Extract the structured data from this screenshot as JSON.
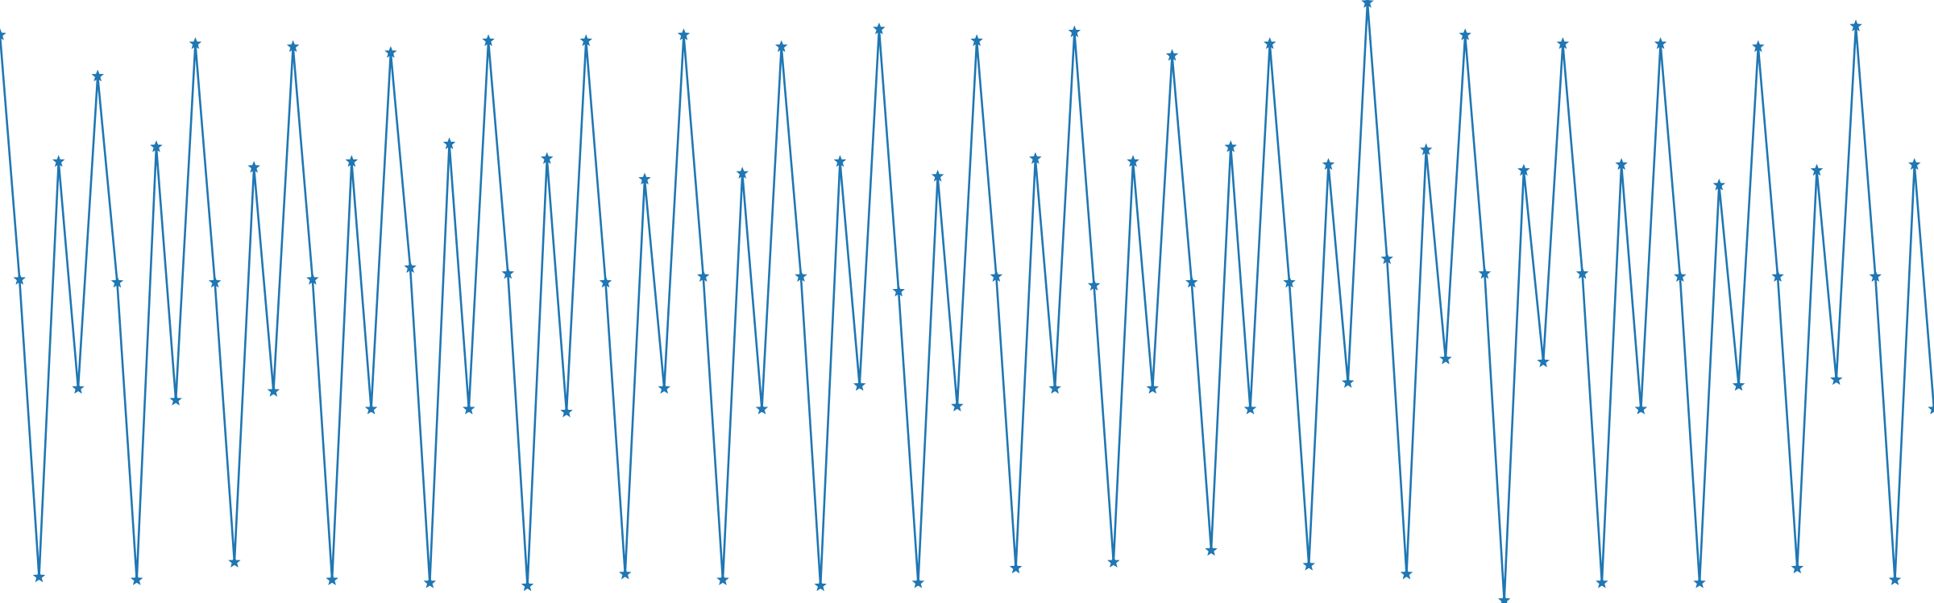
{
  "chart_data": {
    "type": "line",
    "title": "",
    "xlabel": "",
    "ylabel": "",
    "axes_visible": false,
    "grid": false,
    "legend": "none",
    "marker": "star",
    "colors": {
      "series": "#1f77b4"
    },
    "xlim": [
      0,
      99
    ],
    "ylim": [
      0.37,
      20.73
    ],
    "series": [
      {
        "values": [
          19.6,
          11.3,
          1.2,
          15.3,
          7.6,
          18.2,
          11.2,
          1.1,
          15.8,
          7.2,
          19.3,
          11.2,
          1.7,
          15.1,
          7.5,
          19.2,
          11.3,
          1.1,
          15.3,
          6.9,
          19.0,
          11.7,
          1.0,
          15.9,
          6.9,
          19.4,
          11.5,
          0.9,
          15.4,
          6.8,
          19.4,
          11.2,
          1.3,
          14.7,
          7.6,
          19.6,
          11.4,
          1.1,
          14.9,
          6.9,
          19.2,
          11.4,
          0.9,
          15.3,
          7.7,
          19.8,
          10.9,
          1.0,
          14.8,
          7.0,
          19.4,
          11.4,
          1.5,
          15.4,
          7.6,
          19.7,
          11.1,
          1.7,
          15.3,
          7.6,
          18.9,
          11.2,
          2.1,
          15.8,
          6.9,
          19.3,
          11.2,
          1.6,
          15.2,
          7.8,
          20.7,
          12.0,
          1.3,
          15.7,
          8.6,
          19.6,
          11.5,
          0.4,
          15.0,
          8.5,
          19.3,
          11.5,
          1.0,
          15.2,
          6.9,
          19.3,
          11.4,
          1.0,
          14.5,
          7.7,
          19.2,
          11.4,
          1.5,
          15.0,
          7.9,
          19.9,
          11.4,
          1.1,
          15.2,
          6.9
        ]
      }
    ]
  }
}
